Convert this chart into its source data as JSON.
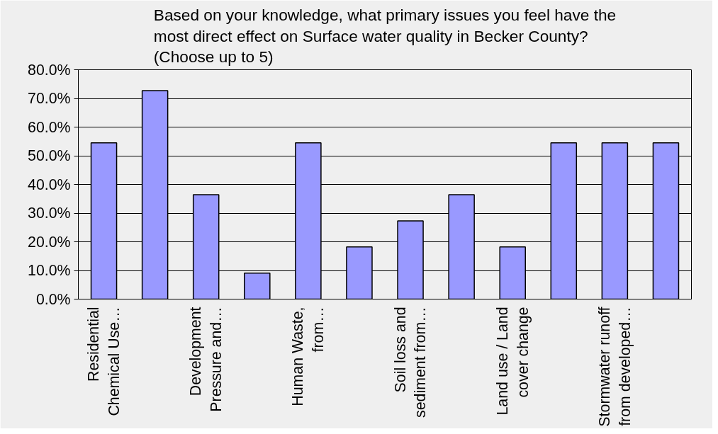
{
  "chart_data": {
    "type": "bar",
    "title": "Based on your knowledge, what primary issues you feel have the\nmost direct effect on Surface water quality in Becker County?\n(Choose up to 5)",
    "categories": [
      "Residential\nChemical Use…",
      null,
      "Development\nPressure and…",
      null,
      "Human Waste,\nfrom…",
      null,
      "Soil loss and\nsediment from…",
      null,
      "Land use / Land\ncover change",
      null,
      "Stormwater runoff\nfrom developed…",
      null
    ],
    "values": [
      54.5,
      72.7,
      36.4,
      9.1,
      54.5,
      18.2,
      27.3,
      36.4,
      18.2,
      54.5,
      54.5,
      54.5
    ],
    "color": "#9999ff",
    "ylim": [
      0,
      80
    ],
    "yticks": [
      {
        "value": 0,
        "label": "0.0%"
      },
      {
        "value": 10,
        "label": "10.0%"
      },
      {
        "value": 20,
        "label": "20.0%"
      },
      {
        "value": 30,
        "label": "30.0%"
      },
      {
        "value": 40,
        "label": "40.0%"
      },
      {
        "value": 50,
        "label": "50.0%"
      },
      {
        "value": 60,
        "label": "60.0%"
      },
      {
        "value": 70,
        "label": "70.0%"
      },
      {
        "value": 80,
        "label": "80.0%"
      }
    ],
    "grid": "y"
  }
}
